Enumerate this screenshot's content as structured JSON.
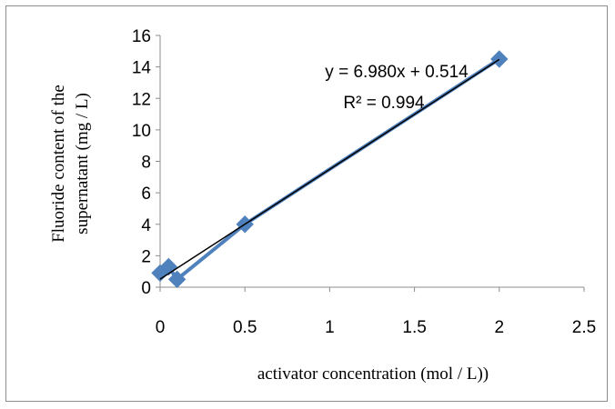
{
  "chart_data": {
    "type": "scatter",
    "xlabel": "activator concentration (mol / L))",
    "ylabel_lines": [
      "Fluoride content of the",
      "supernatant (mg / L)"
    ],
    "xlim": [
      0,
      2.5
    ],
    "ylim": [
      0,
      16
    ],
    "x_ticks": [
      "0",
      "0.5",
      "1",
      "1.5",
      "2",
      "2.5"
    ],
    "y_ticks": [
      "0",
      "2",
      "4",
      "6",
      "8",
      "10",
      "12",
      "14",
      "16"
    ],
    "grid": false,
    "series": [
      {
        "x": [
          0,
          0.05,
          0.1,
          0.5,
          2
        ],
        "y": [
          0.9,
          1.3,
          0.5,
          4.0,
          14.5
        ],
        "color": "#4f81bd",
        "marker": "diamond",
        "connected": true
      }
    ],
    "trendline": {
      "type": "linear",
      "slope": 6.98,
      "intercept": 0.514,
      "x_range": [
        0,
        2
      ],
      "color": "#000000"
    },
    "annotations": {
      "equation": "y = 6.980x + 0.514",
      "r_squared": "R² = 0.994"
    }
  }
}
